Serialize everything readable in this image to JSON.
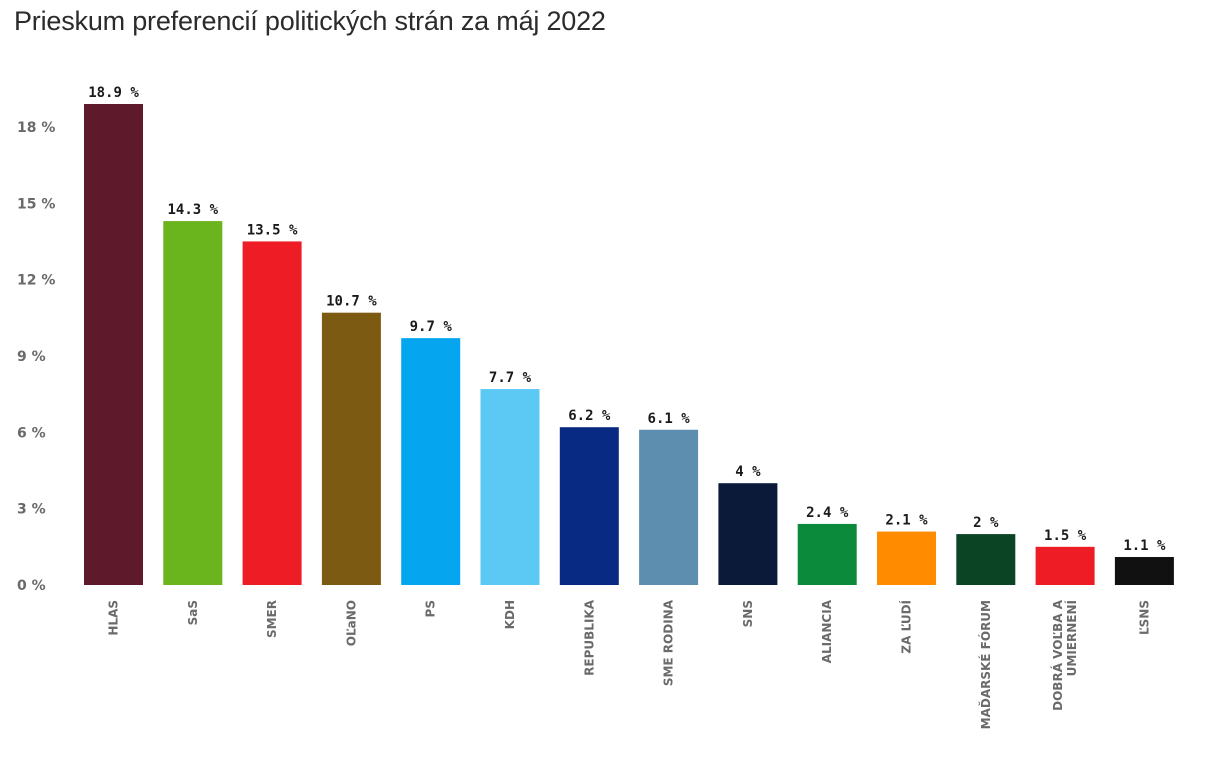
{
  "chart_data": {
    "type": "bar",
    "title": "Prieskum preferencií politických strán za máj 2022",
    "xlabel": "",
    "ylabel": "",
    "ylim": [
      0,
      18.9
    ],
    "yticks": [
      0,
      3,
      6,
      9,
      12,
      15,
      18
    ],
    "ytick_labels": [
      "0 %",
      "3 %",
      "6 %",
      "9 %",
      "12 %",
      "15 %",
      "18 %"
    ],
    "grid": false,
    "legend": "none",
    "categories": [
      [
        "HLAS"
      ],
      [
        "SaS"
      ],
      [
        "SMER"
      ],
      [
        "OĽaNO"
      ],
      [
        "PS"
      ],
      [
        "KDH"
      ],
      [
        "REPUBLIKA"
      ],
      [
        "SME RODINA"
      ],
      [
        "SNS"
      ],
      [
        "ALIANCIA"
      ],
      [
        "ZA ĽUDÍ"
      ],
      [
        "MAĎARSKÉ FÓRUM"
      ],
      [
        "DOBRÁ VOĽBA A",
        "UMIERNENÍ"
      ],
      [
        "ĽSNS"
      ]
    ],
    "values": [
      18.9,
      14.3,
      13.5,
      10.7,
      9.7,
      7.7,
      6.2,
      6.1,
      4,
      2.4,
      2.1,
      2,
      1.5,
      1.1
    ],
    "value_labels": [
      "18.9 %",
      "14.3 %",
      "13.5 %",
      "10.7 %",
      "9.7 %",
      "7.7 %",
      "6.2 %",
      "6.1 %",
      "4 %",
      "2.4 %",
      "2.1 %",
      "2 %",
      "1.5 %",
      "1.1 %"
    ],
    "colors": [
      "#5e1a2b",
      "#6ab51e",
      "#ee1c25",
      "#7d5a12",
      "#05a6ef",
      "#5cc9f5",
      "#082a83",
      "#5e8eaf",
      "#0c1a3a",
      "#0a8a3a",
      "#ff8c00",
      "#0b4425",
      "#ee1c25",
      "#111111"
    ]
  }
}
